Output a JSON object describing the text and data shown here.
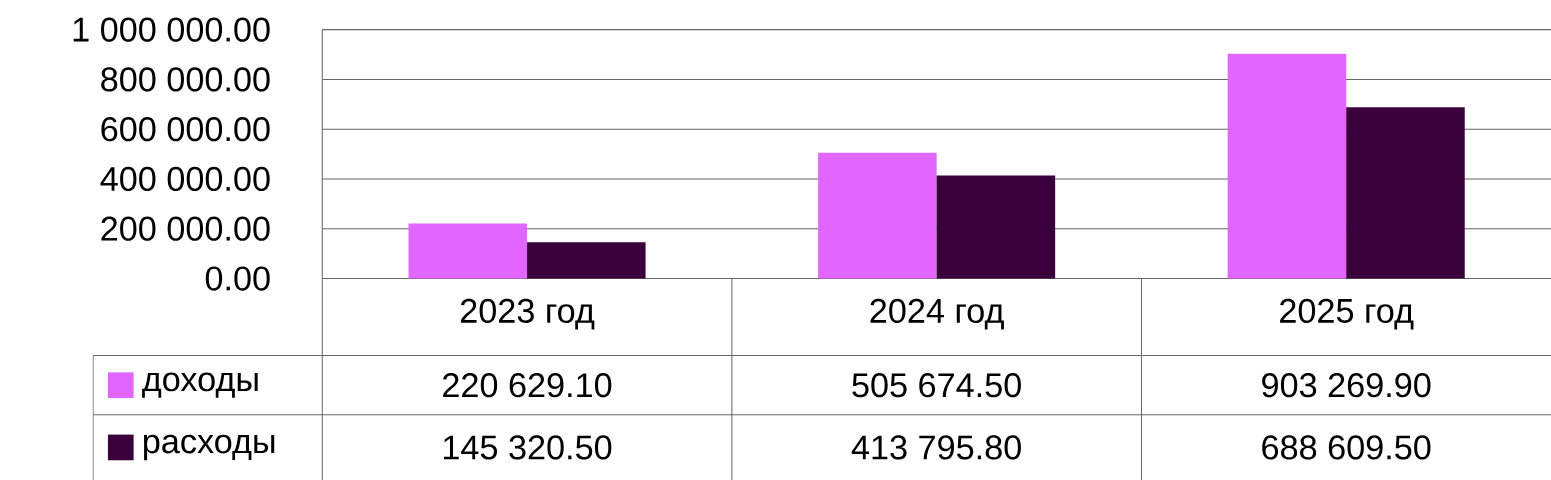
{
  "chart_data": {
    "type": "bar",
    "categories": [
      "2023 год",
      "2024 год",
      "2025 год"
    ],
    "series": [
      {
        "name": "доходы",
        "color": "#e066ff",
        "values": [
          220629.1,
          505674.5,
          903269.9
        ],
        "value_labels": [
          "220 629.10",
          "505 674.50",
          "903 269.90"
        ]
      },
      {
        "name": "расходы",
        "color": "#3a003c",
        "values": [
          145320.5,
          413795.8,
          688609.5
        ],
        "value_labels": [
          "145 320.50",
          "413 795.80",
          "688 609.50"
        ]
      }
    ],
    "ylim": [
      0,
      1000000
    ],
    "yticks": [
      {
        "value": 0,
        "label": "0.00"
      },
      {
        "value": 200000,
        "label": "200 000.00"
      },
      {
        "value": 400000,
        "label": "400 000.00"
      },
      {
        "value": 600000,
        "label": "600 000.00"
      },
      {
        "value": 800000,
        "label": "800 000.00"
      },
      {
        "value": 1000000,
        "label": "1 000 000.00"
      }
    ],
    "grid": "y",
    "legend": "bottom left"
  }
}
